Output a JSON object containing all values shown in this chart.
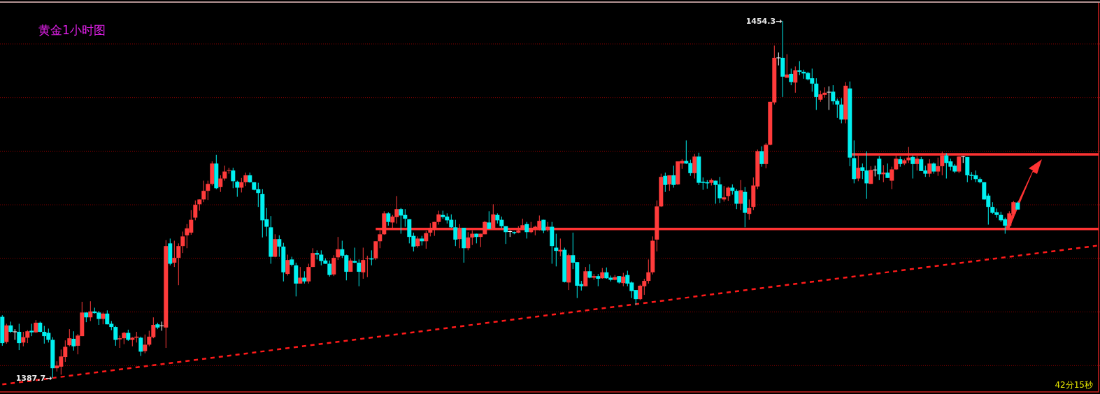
{
  "chart_data": {
    "type": "candlestick",
    "title": "黄金1小时图",
    "annotations": [
      "42分15秒",
      "1454.3→",
      "1387.7→"
    ],
    "ylim": [
      1384.7,
      1458.2
    ],
    "yticks": [
      {
        "value": 1390,
        "label": null
      },
      {
        "value": 1400,
        "label": null
      },
      {
        "value": 1410,
        "label": null
      },
      {
        "value": 1420,
        "label": null
      },
      {
        "value": 1430,
        "label": null
      },
      {
        "value": 1440,
        "label": null
      },
      {
        "value": 1450,
        "label": null
      }
    ],
    "grid": "y",
    "categories": [
      null,
      null,
      null,
      null,
      null,
      null,
      null,
      null,
      null,
      null,
      null,
      null,
      null,
      null,
      null,
      null,
      null,
      null,
      null,
      null,
      null,
      null,
      null,
      null,
      null,
      null,
      null,
      null,
      null,
      null,
      null,
      null,
      null,
      null,
      null,
      null,
      null,
      null,
      null,
      null,
      null,
      null,
      null,
      null,
      null,
      null,
      null,
      null,
      null,
      null,
      null,
      null,
      null,
      null,
      null,
      null,
      null,
      null,
      null,
      null,
      null,
      null,
      null,
      null,
      null,
      null,
      null,
      null,
      null,
      null,
      null,
      null,
      null,
      null,
      null,
      null,
      null,
      null,
      null,
      null,
      null,
      null,
      null,
      null,
      null,
      null,
      null,
      null,
      null,
      null,
      null,
      null,
      null,
      null,
      null,
      null,
      null,
      null,
      null,
      null,
      null,
      null,
      null,
      null,
      null,
      null,
      null,
      null,
      null,
      null,
      null,
      null,
      null,
      null,
      null,
      null,
      null,
      null,
      null,
      null,
      null,
      null,
      null,
      null,
      null,
      null,
      null,
      null,
      null,
      null,
      null,
      null,
      null,
      null,
      null,
      null,
      null,
      null,
      null,
      null,
      null,
      null,
      null,
      null,
      null,
      null,
      null,
      null,
      null,
      null,
      null,
      null,
      null,
      null,
      null,
      null,
      null,
      null,
      null,
      null,
      null,
      null,
      null,
      null,
      null,
      null,
      null,
      null,
      null,
      null,
      null,
      null,
      null,
      null,
      null,
      null,
      null,
      null,
      null,
      null,
      null,
      null,
      null,
      null,
      null,
      null,
      null,
      null,
      null,
      null,
      null,
      null,
      null,
      null,
      null,
      null,
      null,
      null,
      null,
      null,
      null,
      null,
      null,
      null,
      null,
      null,
      null,
      null,
      null,
      null,
      null,
      null,
      null,
      null,
      null,
      null,
      null,
      null,
      null,
      null,
      null,
      null,
      null,
      null,
      null,
      null,
      null,
      null,
      null,
      null,
      null,
      null,
      null,
      null,
      null,
      null,
      null,
      null,
      null,
      null,
      null,
      null,
      null
    ],
    "ohlc": [
      [
        1399.1,
        1399.4,
        1393.7,
        1394.2
      ],
      [
        1394.4,
        1397.8,
        1394.1,
        1397.5
      ],
      [
        1397.5,
        1398.2,
        1396.1,
        1396.3
      ],
      [
        1396.3,
        1396.8,
        1394.8,
        1396.3
      ],
      [
        1396.3,
        1397.8,
        1392.9,
        1394.2
      ],
      [
        1394.3,
        1396.3,
        1393.6,
        1395.3
      ],
      [
        1395.2,
        1396.6,
        1394.2,
        1396.4
      ],
      [
        1396.5,
        1397.8,
        1395.5,
        1396.2
      ],
      [
        1396.2,
        1398.5,
        1396.1,
        1398.0
      ],
      [
        1398.0,
        1398.2,
        1396.2,
        1396.3
      ],
      [
        1396.3,
        1397.4,
        1394.1,
        1395.5
      ],
      [
        1396.1,
        1396.9,
        1394.3,
        1394.8
      ],
      [
        1394.8,
        1395.3,
        1387.7,
        1389.5
      ],
      [
        1389.5,
        1390.8,
        1388.9,
        1390.0
      ],
      [
        1389.8,
        1393.0,
        1388.3,
        1391.7
      ],
      [
        1391.6,
        1394.7,
        1390.7,
        1393.5
      ],
      [
        1393.8,
        1396.8,
        1393.6,
        1395.1
      ],
      [
        1395.0,
        1396.4,
        1392.8,
        1393.6
      ],
      [
        1393.7,
        1395.9,
        1392.1,
        1395.6
      ],
      [
        1395.5,
        1401.9,
        1395.5,
        1399.9
      ],
      [
        1399.9,
        1399.9,
        1398.1,
        1399.0
      ],
      [
        1399.0,
        1402.0,
        1398.3,
        1400.1
      ],
      [
        1400.1,
        1400.8,
        1399.7,
        1399.8
      ],
      [
        1399.9,
        1400.2,
        1397.6,
        1398.7
      ],
      [
        1398.7,
        1399.9,
        1397.7,
        1399.7
      ],
      [
        1399.7,
        1400.3,
        1397.7,
        1397.7
      ],
      [
        1397.8,
        1398.3,
        1396.6,
        1397.2
      ],
      [
        1397.2,
        1397.4,
        1393.7,
        1394.8
      ],
      [
        1394.9,
        1395.6,
        1393.3,
        1395.1
      ],
      [
        1395.1,
        1396.3,
        1394.0,
        1396.1
      ],
      [
        1396.1,
        1396.7,
        1394.6,
        1394.8
      ],
      [
        1394.8,
        1395.3,
        1393.6,
        1395.2
      ],
      [
        1395.2,
        1396.3,
        1394.3,
        1395.4
      ],
      [
        1395.2,
        1395.4,
        1391.8,
        1392.6
      ],
      [
        1392.7,
        1395.8,
        1392.3,
        1393.9
      ],
      [
        1393.9,
        1396.5,
        1393.6,
        1395.4
      ],
      [
        1395.3,
        1399.0,
        1395.1,
        1397.6
      ],
      [
        1397.7,
        1398.0,
        1396.8,
        1397.1
      ],
      [
        1397.4,
        1398.2,
        1396.5,
        1397.4
      ],
      [
        1397.1,
        1413.4,
        1393.3,
        1412.3
      ],
      [
        1412.8,
        1413.7,
        1408.7,
        1409.0
      ],
      [
        1409.2,
        1413.3,
        1408.4,
        1410.1
      ],
      [
        1410.1,
        1412.8,
        1405.0,
        1412.3
      ],
      [
        1412.3,
        1415.0,
        1411.0,
        1414.1
      ],
      [
        1414.3,
        1416.4,
        1411.9,
        1415.6
      ],
      [
        1414.8,
        1419.0,
        1414.4,
        1417.2
      ],
      [
        1417.6,
        1420.8,
        1417.1,
        1420.0
      ],
      [
        1420.1,
        1421.0,
        1418.9,
        1421.0
      ],
      [
        1421.0,
        1424.5,
        1420.5,
        1422.6
      ],
      [
        1422.6,
        1424.5,
        1420.9,
        1423.9
      ],
      [
        1423.9,
        1428.1,
        1423.6,
        1427.7
      ],
      [
        1427.7,
        1429.3,
        1422.9,
        1423.1
      ],
      [
        1423.3,
        1425.5,
        1422.4,
        1424.9
      ],
      [
        1424.9,
        1427.3,
        1424.5,
        1426.2
      ],
      [
        1426.3,
        1426.9,
        1425.8,
        1426.4
      ],
      [
        1426.4,
        1426.9,
        1423.1,
        1424.4
      ],
      [
        1424.3,
        1424.5,
        1421.5,
        1423.2
      ],
      [
        1423.2,
        1425.0,
        1422.3,
        1424.2
      ],
      [
        1424.2,
        1426.0,
        1423.5,
        1425.5
      ],
      [
        1425.5,
        1426.0,
        1424.1,
        1424.2
      ],
      [
        1424.2,
        1424.2,
        1422.7,
        1422.8
      ],
      [
        1422.9,
        1424.1,
        1419.6,
        1422.2
      ],
      [
        1422.0,
        1422.9,
        1413.9,
        1417.1
      ],
      [
        1417.3,
        1419.4,
        1414.1,
        1415.9
      ],
      [
        1415.8,
        1417.9,
        1409.0,
        1410.3
      ],
      [
        1410.3,
        1414.5,
        1410.2,
        1413.6
      ],
      [
        1413.6,
        1414.3,
        1410.3,
        1412.2
      ],
      [
        1412.2,
        1412.9,
        1405.7,
        1407.4
      ],
      [
        1407.1,
        1410.7,
        1406.8,
        1409.7
      ],
      [
        1409.8,
        1410.3,
        1408.5,
        1408.8
      ],
      [
        1408.7,
        1409.2,
        1402.9,
        1405.3
      ],
      [
        1405.3,
        1408.4,
        1405.3,
        1406.4
      ],
      [
        1406.4,
        1407.6,
        1405.3,
        1405.7
      ],
      [
        1405.7,
        1409.0,
        1405.3,
        1408.4
      ],
      [
        1408.4,
        1411.9,
        1408.4,
        1411.0
      ],
      [
        1411.0,
        1411.5,
        1409.8,
        1410.7
      ],
      [
        1410.7,
        1411.5,
        1408.7,
        1409.5
      ],
      [
        1409.6,
        1410.0,
        1409.0,
        1409.0
      ],
      [
        1409.0,
        1409.6,
        1406.6,
        1406.9
      ],
      [
        1407.0,
        1410.6,
        1406.7,
        1410.1
      ],
      [
        1410.2,
        1414.0,
        1409.7,
        1411.7
      ],
      [
        1411.7,
        1413.3,
        1410.1,
        1410.5
      ],
      [
        1410.6,
        1410.7,
        1405.9,
        1407.5
      ],
      [
        1407.5,
        1410.0,
        1407.5,
        1409.6
      ],
      [
        1409.5,
        1412.0,
        1409.1,
        1409.2
      ],
      [
        1409.2,
        1409.8,
        1404.8,
        1407.5
      ],
      [
        1407.4,
        1412.0,
        1406.2,
        1409.7
      ],
      [
        1409.9,
        1410.5,
        1406.5,
        1410.0
      ],
      [
        1410.0,
        1411.5,
        1408.7,
        1409.8
      ],
      [
        1410.0,
        1413.2,
        1409.7,
        1413.2
      ],
      [
        1413.2,
        1415.2,
        1411.9,
        1414.5
      ],
      [
        1414.5,
        1418.8,
        1414.4,
        1418.4
      ],
      [
        1418.4,
        1418.6,
        1416.1,
        1416.8
      ],
      [
        1416.7,
        1418.1,
        1415.7,
        1417.8
      ],
      [
        1417.7,
        1421.6,
        1416.5,
        1419.2
      ],
      [
        1419.2,
        1419.4,
        1414.6,
        1418.0
      ],
      [
        1418.1,
        1419.2,
        1415.9,
        1417.4
      ],
      [
        1417.3,
        1417.3,
        1412.8,
        1414.0
      ],
      [
        1414.2,
        1414.8,
        1411.3,
        1412.2
      ],
      [
        1412.3,
        1414.1,
        1412.0,
        1413.7
      ],
      [
        1413.7,
        1414.2,
        1412.4,
        1413.2
      ],
      [
        1413.2,
        1415.1,
        1411.8,
        1414.7
      ],
      [
        1414.8,
        1416.6,
        1414.1,
        1415.7
      ],
      [
        1415.4,
        1416.8,
        1414.2,
        1416.8
      ],
      [
        1416.8,
        1418.9,
        1416.3,
        1418.2
      ],
      [
        1418.1,
        1418.9,
        1417.4,
        1417.7
      ],
      [
        1417.8,
        1418.4,
        1416.5,
        1417.1
      ],
      [
        1417.2,
        1418.2,
        1415.7,
        1415.8
      ],
      [
        1415.8,
        1417.2,
        1412.3,
        1413.5
      ],
      [
        1413.6,
        1416.4,
        1411.9,
        1415.4
      ],
      [
        1415.7,
        1415.7,
        1409.2,
        1411.9
      ],
      [
        1411.9,
        1414.9,
        1411.5,
        1413.9
      ],
      [
        1413.9,
        1415.2,
        1412.5,
        1414.6
      ],
      [
        1414.6,
        1414.6,
        1412.8,
        1414.0
      ],
      [
        1414.0,
        1414.6,
        1412.1,
        1414.6
      ],
      [
        1414.5,
        1417.0,
        1414.5,
        1416.8
      ],
      [
        1416.7,
        1418.8,
        1415.5,
        1415.5
      ],
      [
        1415.5,
        1420.1,
        1415.5,
        1418.2
      ],
      [
        1418.1,
        1418.4,
        1416.5,
        1417.1
      ],
      [
        1417.2,
        1417.8,
        1415.6,
        1416.0
      ],
      [
        1416.0,
        1416.0,
        1412.7,
        1414.9
      ],
      [
        1415.0,
        1415.2,
        1414.0,
        1415.0
      ],
      [
        1414.9,
        1415.0,
        1414.5,
        1414.7
      ],
      [
        1414.8,
        1416.0,
        1414.7,
        1415.2
      ],
      [
        1415.7,
        1417.4,
        1415.4,
        1416.2
      ],
      [
        1416.4,
        1416.8,
        1413.7,
        1414.9
      ],
      [
        1414.9,
        1416.8,
        1414.7,
        1415.7
      ],
      [
        1415.7,
        1416.1,
        1414.3,
        1415.9
      ],
      [
        1415.7,
        1418.0,
        1415.2,
        1417.0
      ],
      [
        1417.2,
        1417.2,
        1414.7,
        1415.2
      ],
      [
        1415.7,
        1416.8,
        1415.0,
        1415.9
      ],
      [
        1415.9,
        1416.8,
        1409.0,
        1412.3
      ],
      [
        1412.0,
        1414.6,
        1408.5,
        1411.4
      ],
      [
        1411.3,
        1413.7,
        1410.4,
        1411.6
      ],
      [
        1411.6,
        1412.0,
        1405.5,
        1405.6
      ],
      [
        1405.5,
        1410.9,
        1404.1,
        1410.6
      ],
      [
        1410.6,
        1414.8,
        1408.0,
        1409.2
      ],
      [
        1409.3,
        1409.3,
        1402.6,
        1404.9
      ],
      [
        1405.2,
        1405.8,
        1404.0,
        1404.8
      ],
      [
        1404.8,
        1408.4,
        1404.8,
        1407.6
      ],
      [
        1407.6,
        1408.9,
        1406.3,
        1406.4
      ],
      [
        1406.4,
        1407.1,
        1406.0,
        1406.7
      ],
      [
        1406.7,
        1407.1,
        1404.8,
        1406.2
      ],
      [
        1406.3,
        1408.2,
        1406.2,
        1407.4
      ],
      [
        1407.4,
        1408.3,
        1406.2,
        1406.3
      ],
      [
        1406.4,
        1406.8,
        1405.7,
        1406.0
      ],
      [
        1406.0,
        1406.9,
        1405.9,
        1406.5
      ],
      [
        1406.7,
        1406.7,
        1405.3,
        1405.5
      ],
      [
        1405.4,
        1407.3,
        1404.8,
        1406.6
      ],
      [
        1406.9,
        1407.7,
        1404.8,
        1405.3
      ],
      [
        1405.5,
        1405.7,
        1402.6,
        1403.9
      ],
      [
        1404.1,
        1404.1,
        1401.3,
        1402.4
      ],
      [
        1402.4,
        1405.1,
        1402.2,
        1404.9
      ],
      [
        1404.8,
        1406.2,
        1403.2,
        1405.8
      ],
      [
        1405.8,
        1409.8,
        1405.3,
        1407.4
      ],
      [
        1407.4,
        1414.1,
        1407.0,
        1413.3
      ],
      [
        1413.5,
        1420.8,
        1411.3,
        1419.7
      ],
      [
        1419.7,
        1425.8,
        1419.6,
        1425.2
      ],
      [
        1425.4,
        1426.0,
        1422.4,
        1423.7
      ],
      [
        1423.8,
        1425.5,
        1422.6,
        1425.5
      ],
      [
        1425.5,
        1427.3,
        1423.2,
        1423.7
      ],
      [
        1423.8,
        1428.1,
        1423.7,
        1428.1
      ],
      [
        1427.7,
        1428.5,
        1426.7,
        1428.2
      ],
      [
        1428.2,
        1432.0,
        1427.6,
        1427.7
      ],
      [
        1427.8,
        1428.4,
        1425.4,
        1425.9
      ],
      [
        1425.9,
        1429.5,
        1424.9,
        1429.0
      ],
      [
        1429.0,
        1429.7,
        1423.7,
        1424.1
      ],
      [
        1424.3,
        1425.1,
        1422.8,
        1424.1
      ],
      [
        1424.2,
        1424.6,
        1423.0,
        1424.0
      ],
      [
        1424.1,
        1424.9,
        1423.6,
        1424.6
      ],
      [
        1424.5,
        1424.5,
        1420.2,
        1423.7
      ],
      [
        1423.8,
        1425.2,
        1420.3,
        1421.2
      ],
      [
        1421.0,
        1423.5,
        1420.6,
        1421.4
      ],
      [
        1421.6,
        1423.4,
        1420.7,
        1423.2
      ],
      [
        1423.2,
        1423.8,
        1421.9,
        1422.6
      ],
      [
        1422.6,
        1422.9,
        1419.2,
        1420.2
      ],
      [
        1420.2,
        1424.6,
        1419.0,
        1422.7
      ],
      [
        1422.4,
        1423.3,
        1415.8,
        1418.5
      ],
      [
        1418.3,
        1421.0,
        1417.2,
        1419.4
      ],
      [
        1419.6,
        1425.1,
        1419.0,
        1423.6
      ],
      [
        1423.4,
        1430.3,
        1422.9,
        1430.0
      ],
      [
        1430.0,
        1430.9,
        1427.1,
        1427.6
      ],
      [
        1427.6,
        1431.5,
        1426.8,
        1431.2
      ],
      [
        1431.2,
        1439.2,
        1431.1,
        1439.2
      ],
      [
        1439.1,
        1449.7,
        1438.7,
        1447.4
      ],
      [
        1447.4,
        1448.4,
        1446.0,
        1447.4
      ],
      [
        1447.4,
        1454.3,
        1440.1,
        1443.9
      ],
      [
        1443.7,
        1448.1,
        1443.7,
        1444.3
      ],
      [
        1444.4,
        1445.4,
        1442.3,
        1442.9
      ],
      [
        1442.8,
        1445.8,
        1440.9,
        1445.1
      ],
      [
        1445.1,
        1446.8,
        1444.2,
        1444.8
      ],
      [
        1444.8,
        1445.2,
        1443.5,
        1444.5
      ],
      [
        1444.6,
        1444.8,
        1443.2,
        1443.4
      ],
      [
        1443.6,
        1445.4,
        1441.1,
        1442.6
      ],
      [
        1442.6,
        1443.6,
        1437.7,
        1440.1
      ],
      [
        1439.6,
        1441.3,
        1439.2,
        1440.6
      ],
      [
        1440.5,
        1441.9,
        1440.0,
        1440.9
      ],
      [
        1441.0,
        1442.1,
        1437.7,
        1441.0
      ],
      [
        1441.1,
        1442.3,
        1438.7,
        1439.3
      ],
      [
        1439.4,
        1439.8,
        1436.2,
        1438.7
      ],
      [
        1438.7,
        1439.9,
        1435.2,
        1435.9
      ],
      [
        1435.9,
        1442.9,
        1435.2,
        1442.2
      ],
      [
        1441.7,
        1443.0,
        1427.2,
        1428.8
      ],
      [
        1428.7,
        1432.0,
        1424.0,
        1424.8
      ],
      [
        1424.9,
        1429.2,
        1424.4,
        1426.9
      ],
      [
        1427.0,
        1427.7,
        1424.8,
        1426.3
      ],
      [
        1426.4,
        1430.0,
        1421.1,
        1424.0
      ],
      [
        1423.9,
        1427.2,
        1423.9,
        1426.5
      ],
      [
        1426.5,
        1427.3,
        1425.3,
        1426.5
      ],
      [
        1428.6,
        1429.1,
        1424.6,
        1425.7
      ],
      [
        1425.7,
        1427.4,
        1424.2,
        1426.0
      ],
      [
        1426.0,
        1427.7,
        1425.0,
        1425.0
      ],
      [
        1424.5,
        1427.1,
        1422.9,
        1426.6
      ],
      [
        1426.6,
        1429.2,
        1426.5,
        1428.6
      ],
      [
        1428.5,
        1429.0,
        1427.1,
        1427.6
      ],
      [
        1427.7,
        1428.6,
        1427.4,
        1428.3
      ],
      [
        1428.3,
        1430.8,
        1427.8,
        1428.8
      ],
      [
        1428.9,
        1429.2,
        1424.9,
        1427.6
      ],
      [
        1427.6,
        1429.1,
        1426.4,
        1428.6
      ],
      [
        1428.5,
        1428.9,
        1426.3,
        1426.3
      ],
      [
        1426.4,
        1427.3,
        1425.2,
        1425.8
      ],
      [
        1425.8,
        1428.5,
        1425.2,
        1427.7
      ],
      [
        1427.7,
        1427.9,
        1425.8,
        1426.2
      ],
      [
        1426.2,
        1428.8,
        1425.4,
        1427.2
      ],
      [
        1427.2,
        1429.9,
        1425.5,
        1429.2
      ],
      [
        1429.2,
        1429.6,
        1424.9,
        1427.8
      ],
      [
        1428.1,
        1428.6,
        1426.4,
        1427.1
      ],
      [
        1427.3,
        1427.6,
        1425.9,
        1426.2
      ],
      [
        1426.2,
        1429.1,
        1425.9,
        1429.0
      ],
      [
        1429.0,
        1429.1,
        1427.8,
        1429.0
      ],
      [
        1428.9,
        1428.9,
        1424.2,
        1425.5
      ],
      [
        1425.6,
        1426.1,
        1424.6,
        1425.4
      ],
      [
        1425.5,
        1426.4,
        1424.2,
        1424.8
      ],
      [
        1424.8,
        1425.1,
        1424.0,
        1424.2
      ],
      [
        1424.2,
        1424.2,
        1421.0,
        1421.0
      ],
      [
        1421.7,
        1422.1,
        1416.3,
        1419.6
      ],
      [
        1419.6,
        1420.5,
        1418.3,
        1418.5
      ],
      [
        1418.6,
        1419.3,
        1417.6,
        1418.1
      ],
      [
        1418.1,
        1418.7,
        1416.8,
        1417.1
      ],
      [
        1417.3,
        1417.6,
        1414.6,
        1416.1
      ],
      [
        1416.1,
        1418.8,
        1416.0,
        1418.4
      ],
      [
        1418.3,
        1420.7,
        1417.5,
        1420.5
      ],
      [
        1420.4,
        1420.6,
        1419.1,
        1419.1
      ]
    ],
    "series": [
      {
        "type": "line",
        "color": "#ff1a1a",
        "line_style": "dashed",
        "values": [
          1386.5,
          null,
          null,
          null,
          null,
          null,
          null,
          null,
          null,
          null,
          null,
          null,
          null,
          null,
          null,
          null,
          null,
          null,
          null,
          null,
          null,
          null,
          null,
          null,
          null,
          null,
          null,
          null,
          null,
          null,
          null,
          null,
          null,
          null,
          null,
          null,
          null,
          null,
          null,
          null,
          null,
          null,
          null,
          null,
          null,
          null,
          null,
          null,
          null,
          null,
          null,
          null,
          null,
          null,
          null,
          null,
          null,
          null,
          null,
          null,
          null,
          null,
          null,
          null,
          null,
          null,
          null,
          null,
          null,
          null,
          null,
          null,
          null,
          null,
          null,
          null,
          null,
          null,
          null,
          null,
          null,
          null,
          null,
          null,
          null,
          null,
          null,
          null,
          null,
          null,
          null,
          null,
          null,
          null,
          null,
          null,
          null,
          null,
          null,
          null,
          null,
          null,
          null,
          null,
          null,
          null,
          null,
          null,
          null,
          null,
          null,
          null,
          null,
          null,
          null,
          null,
          null,
          null,
          null,
          null,
          null,
          null,
          null,
          null,
          null,
          null,
          null,
          null,
          null,
          null,
          null,
          null,
          null,
          null,
          null,
          null,
          null,
          null,
          null,
          null,
          null,
          null,
          null,
          null,
          null,
          null,
          null,
          null,
          null,
          null,
          null,
          null,
          null,
          null,
          null,
          null,
          null,
          null,
          null,
          null,
          null,
          null,
          null,
          null,
          null,
          null,
          null,
          null,
          null,
          null,
          null,
          null,
          null,
          null,
          null,
          null,
          null,
          null,
          null,
          null,
          null,
          null,
          null,
          null,
          null,
          null,
          null,
          null,
          null,
          null,
          null,
          null,
          null,
          null,
          null,
          null,
          null,
          null,
          null,
          null,
          null,
          null,
          null,
          null,
          null,
          null,
          null,
          null,
          null,
          null,
          null,
          null,
          null,
          null,
          null,
          null,
          null,
          null,
          null,
          null,
          null,
          null,
          null,
          null,
          null,
          null,
          null,
          null,
          null,
          null,
          null,
          null,
          null,
          null,
          null,
          null,
          null,
          null,
          null,
          null,
          null,
          null,
          1410.5
        ]
      },
      {
        "type": "line",
        "color": "#ff3333",
        "line_style": "solid",
        "values": [
          null,
          null,
          null,
          null,
          null,
          null,
          null,
          null,
          null,
          null,
          null,
          null,
          null,
          null,
          null,
          null,
          null,
          null,
          null,
          null,
          null,
          null,
          null,
          null,
          null,
          null,
          null,
          null,
          null,
          null,
          null,
          null,
          null,
          null,
          null,
          null,
          null,
          null,
          null,
          null,
          null,
          null,
          null,
          null,
          null,
          null,
          null,
          null,
          null,
          null,
          null,
          null,
          null,
          null,
          null,
          null,
          null,
          null,
          null,
          null,
          null,
          null,
          null,
          null,
          null,
          null,
          null,
          null,
          null,
          null,
          null,
          null,
          null,
          null,
          null,
          null,
          null,
          null,
          null,
          null,
          null,
          null,
          null,
          null,
          null,
          null,
          null,
          null,
          null,
          1415.5,
          1415.5,
          1415.5,
          1415.5,
          1415.5,
          1415.5,
          1415.5,
          1415.5,
          1415.5,
          1415.5,
          1415.5,
          1415.5,
          1415.5,
          1415.5,
          1415.5,
          1415.5,
          1415.5,
          1415.5,
          1415.5,
          1415.5,
          1415.5,
          1415.5,
          1415.5,
          1415.5,
          1415.5,
          1415.5,
          1415.5,
          1415.5,
          1415.5,
          1415.5,
          1415.5,
          1415.5,
          1415.5,
          1415.5,
          1415.5,
          1415.5,
          1415.5,
          1415.5,
          1415.5,
          1415.5,
          1415.5,
          1415.5,
          1415.5,
          1415.5,
          1415.5,
          1415.5,
          1415.5,
          1415.5,
          1415.5,
          1415.5,
          1415.5,
          1415.5,
          1415.5,
          1415.5,
          1415.5,
          1415.5,
          1415.5,
          1415.5,
          1415.5,
          1415.5,
          1415.5,
          1415.5,
          1415.5,
          1415.5,
          1415.5,
          1415.5,
          1415.5,
          1415.5,
          1415.5,
          1415.5,
          1415.5,
          1415.5,
          1415.5,
          1415.5,
          1415.5,
          1415.5,
          1415.5,
          1415.5,
          1415.5,
          1415.5,
          1415.5,
          1415.5,
          1415.5,
          1415.5,
          1415.5,
          1415.5,
          1415.5,
          1415.5,
          1415.5,
          1415.5,
          1415.5,
          1415.5,
          1415.5,
          1415.5,
          1415.5,
          1415.5,
          1415.5,
          1415.5,
          1415.5,
          1415.5,
          1415.5,
          1415.5,
          1415.5,
          1415.5,
          1415.5,
          1415.5,
          1415.5,
          1415.5,
          1415.5,
          1415.5,
          1415.5,
          1415.5,
          1415.5,
          1415.5,
          1415.5,
          1415.5,
          1415.5,
          1415.5,
          1415.5,
          1415.5,
          1415.5,
          1415.5,
          1415.5,
          1415.5,
          1415.5,
          1415.5,
          1415.5,
          1415.5,
          1415.5,
          1415.5,
          1415.5,
          1415.5,
          1415.5,
          1415.5,
          1415.5,
          1415.5,
          1415.5,
          1415.5,
          1415.5,
          1415.5,
          1415.5,
          1415.5,
          1415.5,
          1415.5,
          1415.5,
          1415.5,
          1415.5,
          1415.5,
          1415.5,
          1415.5,
          1415.5,
          1415.5,
          1415.5,
          1415.5
        ]
      },
      {
        "type": "line",
        "color": "#ff3333",
        "line_style": "solid",
        "values": [
          null,
          null,
          null,
          null,
          null,
          null,
          null,
          null,
          null,
          null,
          null,
          null,
          null,
          null,
          null,
          null,
          null,
          null,
          null,
          null,
          null,
          null,
          null,
          null,
          null,
          null,
          null,
          null,
          null,
          null,
          null,
          null,
          null,
          null,
          null,
          null,
          null,
          null,
          null,
          null,
          null,
          null,
          null,
          null,
          null,
          null,
          null,
          null,
          null,
          null,
          null,
          null,
          null,
          null,
          null,
          null,
          null,
          null,
          null,
          null,
          null,
          null,
          null,
          null,
          null,
          null,
          null,
          null,
          null,
          null,
          null,
          null,
          null,
          null,
          null,
          null,
          null,
          null,
          null,
          null,
          null,
          null,
          null,
          null,
          null,
          null,
          null,
          null,
          null,
          null,
          null,
          null,
          null,
          null,
          null,
          null,
          null,
          null,
          null,
          null,
          null,
          null,
          null,
          null,
          null,
          null,
          null,
          null,
          null,
          null,
          null,
          null,
          null,
          null,
          null,
          null,
          null,
          null,
          null,
          null,
          null,
          null,
          null,
          null,
          null,
          null,
          null,
          null,
          null,
          null,
          null,
          null,
          null,
          null,
          null,
          null,
          null,
          null,
          null,
          null,
          null,
          null,
          null,
          null,
          null,
          null,
          null,
          null,
          null,
          null,
          null,
          null,
          null,
          null,
          null,
          null,
          null,
          null,
          null,
          null,
          null,
          null,
          null,
          null,
          null,
          null,
          null,
          null,
          null,
          null,
          null,
          null,
          null,
          null,
          null,
          null,
          null,
          null,
          null,
          null,
          null,
          null,
          null,
          null,
          null,
          null,
          null,
          null,
          null,
          null,
          null,
          null,
          null,
          null,
          null,
          null,
          null,
          null,
          null,
          null,
          null,
          null,
          1429.4,
          1429.4,
          1429.4,
          1429.4,
          1429.4,
          1429.4,
          1429.4,
          1429.4,
          1429.4,
          1429.4,
          1429.4,
          1429.4,
          1429.4,
          1429.4,
          1429.4,
          1429.4,
          1429.4,
          1429.4,
          1429.4,
          1429.4,
          1429.4,
          1429.4,
          1429.4,
          1429.4,
          1429.4,
          1429.4,
          1429.4,
          1429.4,
          1429.4,
          1429.4,
          1429.4,
          1429.4,
          1429.4,
          1429.4,
          1429.4,
          1429.4,
          1429.4,
          1429.4,
          1429.4,
          1429.4,
          1429.4
        ]
      }
    ]
  }
}
